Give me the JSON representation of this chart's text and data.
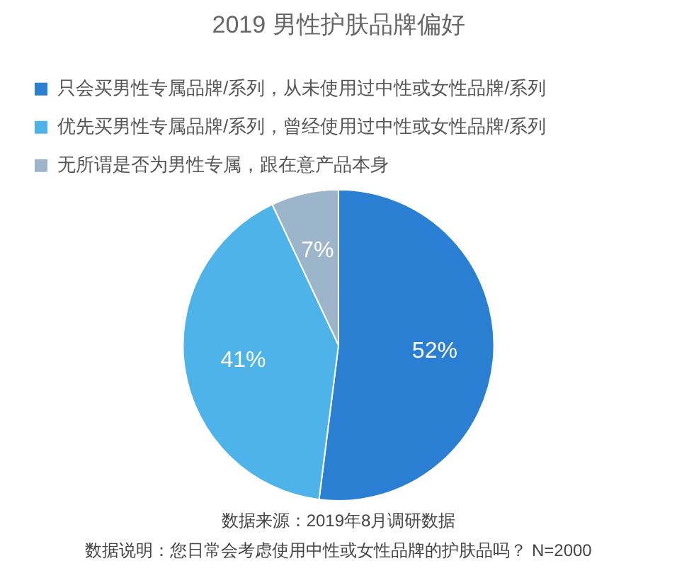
{
  "chart_data": {
    "type": "pie",
    "title": "2019 男性护肤品牌偏好",
    "categories": [
      "只会买男性专属品牌/系列，从未使用过中性或女性品牌/系列",
      "优先买男性专属品牌/系列，曾经使用过中性或女性品牌/系列",
      "无所谓是否为男性专属，跟在意产品本身"
    ],
    "values": [
      52,
      41,
      7
    ],
    "colors": [
      "#2a7fd3",
      "#4db3e8",
      "#9db5cb"
    ],
    "value_labels": [
      "52%",
      "41%",
      "7%"
    ],
    "legend": "top left",
    "annotations": [
      "数据来源：2019年8月调研数据",
      "数据说明：您日常会考虑使用中性或女性品牌的护肤品吗？ N=2000"
    ]
  }
}
